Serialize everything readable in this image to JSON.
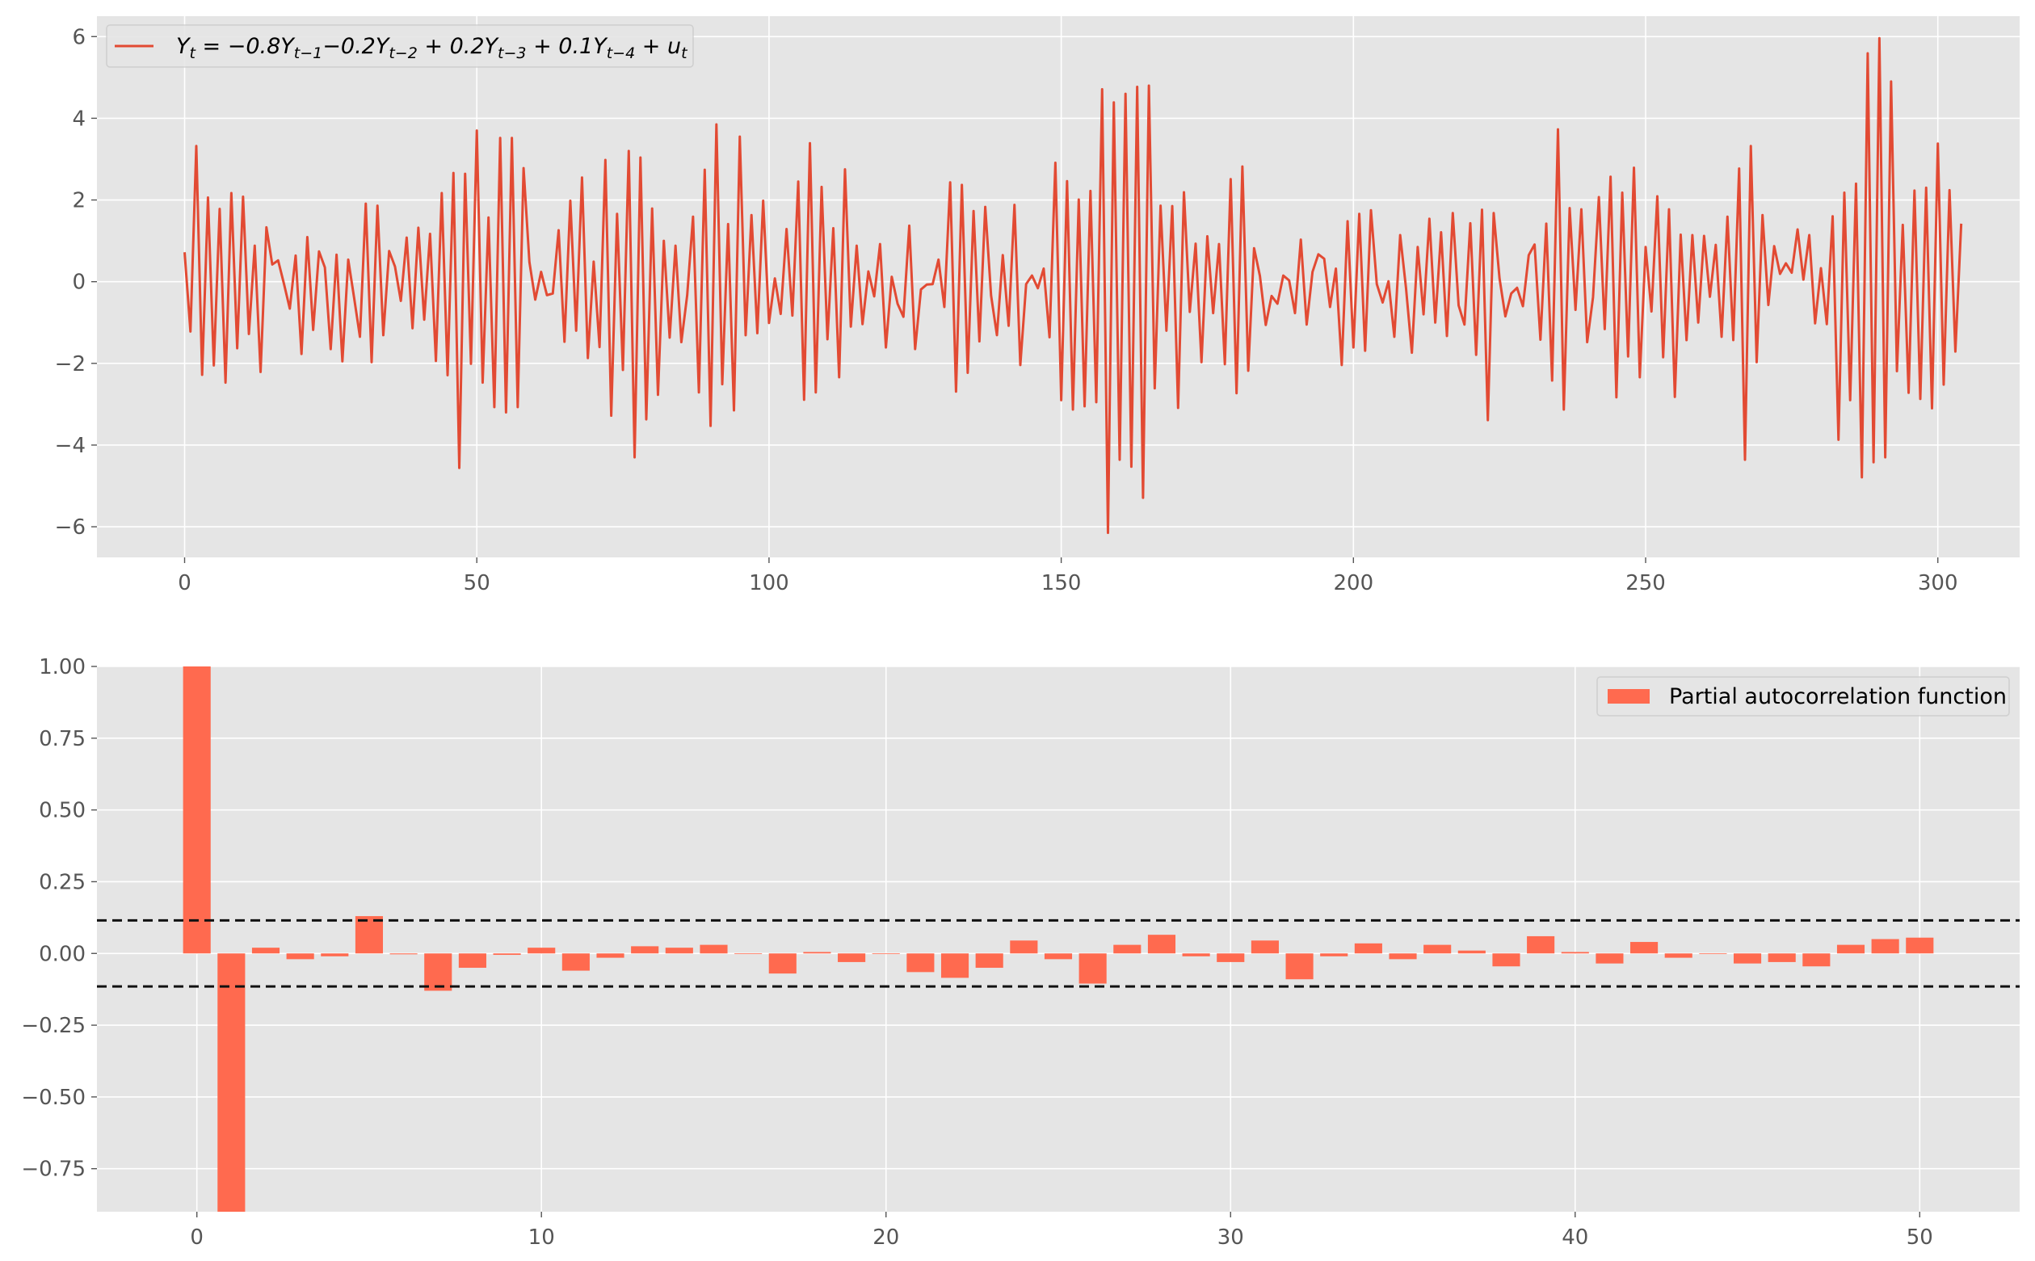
{
  "chart_data": [
    {
      "type": "line",
      "title": "",
      "xlabel": "",
      "ylabel": "",
      "xlim": [
        -15,
        314
      ],
      "ylim": [
        -6.75,
        6.5
      ],
      "grid": true,
      "legend_position": "top-left",
      "line_color": "#E24A33",
      "xticks": [
        0,
        50,
        100,
        150,
        200,
        250,
        300
      ],
      "yticks": [
        -6,
        -4,
        -2,
        0,
        2,
        4,
        6
      ],
      "xtick_labels": [
        "0",
        "50",
        "100",
        "150",
        "200",
        "250",
        "300"
      ],
      "ytick_labels": [
        "−6",
        "−4",
        "−2",
        "0",
        "2",
        "4",
        "6"
      ],
      "series": [
        {
          "name": "Y_t = −0.8Y_{t−1}−0.2Y_{t−2} + 0.2Y_{t−3} + 0.1Y_{t−4} + u_t",
          "legend_parts": {
            "prefix": "Y",
            "sub0": "t",
            "eq": " = −0.8Y",
            "sub1": "t−1",
            "p1": "−0.2Y",
            "sub2": "t−2",
            "p2": " + 0.2Y",
            "sub3": "t−3",
            "p3": " + 0.1Y",
            "sub4": "t−4",
            "p4": " + u",
            "sub5": "t"
          },
          "x_start": 0,
          "x_step": 1,
          "values": [
            0.72,
            -1.22,
            3.32,
            -2.28,
            2.06,
            -2.05,
            1.78,
            -2.47,
            2.17,
            -1.63,
            2.08,
            -1.28,
            0.88,
            -2.21,
            1.33,
            0.42,
            0.52,
            -0.05,
            -0.66,
            0.64,
            -1.77,
            1.09,
            -1.18,
            0.74,
            0.35,
            -1.65,
            0.66,
            -1.95,
            0.54,
            -0.39,
            -1.35,
            1.91,
            -1.97,
            1.86,
            -1.31,
            0.75,
            0.37,
            -0.47,
            1.08,
            -1.14,
            1.32,
            -0.93,
            1.17,
            -1.94,
            2.17,
            -2.29,
            2.66,
            -4.56,
            2.64,
            -2.01,
            3.7,
            -2.47,
            1.57,
            -3.07,
            3.52,
            -3.2,
            3.52,
            -3.07,
            2.78,
            0.48,
            -0.44,
            0.24,
            -0.33,
            -0.29,
            1.26,
            -1.47,
            1.98,
            -1.2,
            2.55,
            -1.87,
            0.49,
            -1.6,
            2.98,
            -3.28,
            1.66,
            -2.16,
            3.2,
            -4.3,
            3.04,
            -3.37,
            1.79,
            -2.77,
            1.0,
            -1.37,
            0.88,
            -1.48,
            -0.33,
            1.59,
            -2.71,
            2.74,
            -3.53,
            3.85,
            -2.51,
            1.41,
            -3.15,
            3.55,
            -1.31,
            1.63,
            -1.26,
            1.98,
            -1.01,
            0.08,
            -0.79,
            1.29,
            -0.83,
            2.45,
            -2.89,
            3.39,
            -2.71,
            2.32,
            -1.41,
            1.31,
            -2.34,
            2.75,
            -1.1,
            0.88,
            -1.04,
            0.25,
            -0.36,
            0.92,
            -1.61,
            0.12,
            -0.54,
            -0.86,
            1.37,
            -1.65,
            -0.19,
            -0.07,
            -0.06,
            0.54,
            -0.62,
            2.43,
            -2.69,
            2.37,
            -2.23,
            1.73,
            -1.46,
            1.83,
            -0.34,
            -1.31,
            0.65,
            -1.08,
            1.88,
            -2.04,
            -0.06,
            0.15,
            -0.16,
            0.32,
            -1.36,
            2.91,
            -2.9,
            2.46,
            -3.13,
            2.01,
            -3.05,
            2.22,
            -2.95,
            4.71,
            -6.15,
            4.39,
            -4.36,
            4.6,
            -4.53,
            4.77,
            -5.29,
            4.8,
            -2.61,
            1.86,
            -1.2,
            1.85,
            -3.09,
            2.19,
            -0.74,
            0.93,
            -1.97,
            1.11,
            -0.77,
            0.92,
            -2.02,
            2.51,
            -2.73,
            2.82,
            -2.18,
            0.82,
            0.14,
            -1.06,
            -0.35,
            -0.54,
            0.15,
            0.03,
            -0.77,
            1.03,
            -1.05,
            0.24,
            0.67,
            0.56,
            -0.62,
            0.32,
            -2.04,
            1.48,
            -1.61,
            1.66,
            -1.69,
            1.75,
            -0.06,
            -0.51,
            0.01,
            -1.35,
            1.14,
            -0.16,
            -1.74,
            0.85,
            -0.8,
            1.54,
            -1.0,
            1.21,
            -1.33,
            1.68,
            -0.58,
            -1.05,
            1.43,
            -1.79,
            1.76,
            -3.39,
            1.68,
            0.08,
            -0.85,
            -0.29,
            -0.15,
            -0.6,
            0.65,
            0.91,
            -1.42,
            1.42,
            -2.42,
            3.73,
            -3.13,
            1.8,
            -0.69,
            1.77,
            -1.48,
            -0.38,
            2.07,
            -1.16,
            2.57,
            -2.83,
            2.18,
            -1.83,
            2.79,
            -2.34,
            0.85,
            -0.73,
            2.09,
            -1.85,
            1.77,
            -2.82,
            1.15,
            -1.43,
            1.14,
            -1.0,
            1.12,
            -0.37,
            0.9,
            -1.35,
            1.59,
            -1.43,
            2.77,
            -4.36,
            3.32,
            -1.97,
            1.63,
            -0.57,
            0.87,
            0.19,
            0.45,
            0.22,
            1.28,
            0.05,
            1.14,
            -1.02,
            0.33,
            -1.04,
            1.6,
            -3.87,
            2.18,
            -2.9,
            2.4,
            -4.79,
            5.59,
            -4.42,
            5.96,
            -4.3,
            4.9,
            -2.19,
            1.39,
            -2.72,
            2.23,
            -2.87,
            2.3,
            -3.1,
            3.38,
            -2.52,
            2.24,
            -1.71,
            1.42
          ]
        }
      ]
    },
    {
      "type": "bar",
      "title": "",
      "xlabel": "",
      "ylabel": "",
      "xlim": [
        -2.9,
        52.9
      ],
      "ylim": [
        -0.9,
        1.0
      ],
      "grid": true,
      "legend_position": "top-right",
      "bar_color": "#FF6A4F",
      "xticks": [
        0,
        10,
        20,
        30,
        40,
        50
      ],
      "yticks": [
        -0.75,
        -0.5,
        -0.25,
        0.0,
        0.25,
        0.5,
        0.75,
        1.0
      ],
      "xtick_labels": [
        "0",
        "10",
        "20",
        "30",
        "40",
        "50"
      ],
      "ytick_labels": [
        "−0.75",
        "−0.50",
        "−0.25",
        "0.00",
        "0.25",
        "0.50",
        "0.75",
        "1.00"
      ],
      "confidence_band": [
        0.115,
        -0.115
      ],
      "series": [
        {
          "name": "Partial autocorrelation function",
          "x_start": 0,
          "x_step": 1,
          "values": [
            1.0,
            -0.9,
            0.02,
            -0.02,
            -0.01,
            0.13,
            -0.003,
            -0.13,
            -0.05,
            -0.005,
            0.02,
            -0.06,
            -0.015,
            0.025,
            0.02,
            0.03,
            0.0,
            -0.07,
            0.005,
            -0.03,
            0.0,
            -0.065,
            -0.085,
            -0.05,
            0.045,
            -0.02,
            -0.105,
            0.03,
            0.065,
            -0.01,
            -0.03,
            0.045,
            -0.09,
            -0.01,
            0.035,
            -0.02,
            0.03,
            0.01,
            -0.045,
            0.06,
            0.005,
            -0.035,
            0.04,
            -0.015,
            0.0,
            -0.035,
            -0.03,
            -0.045,
            0.03,
            0.05,
            0.055
          ]
        }
      ]
    }
  ]
}
